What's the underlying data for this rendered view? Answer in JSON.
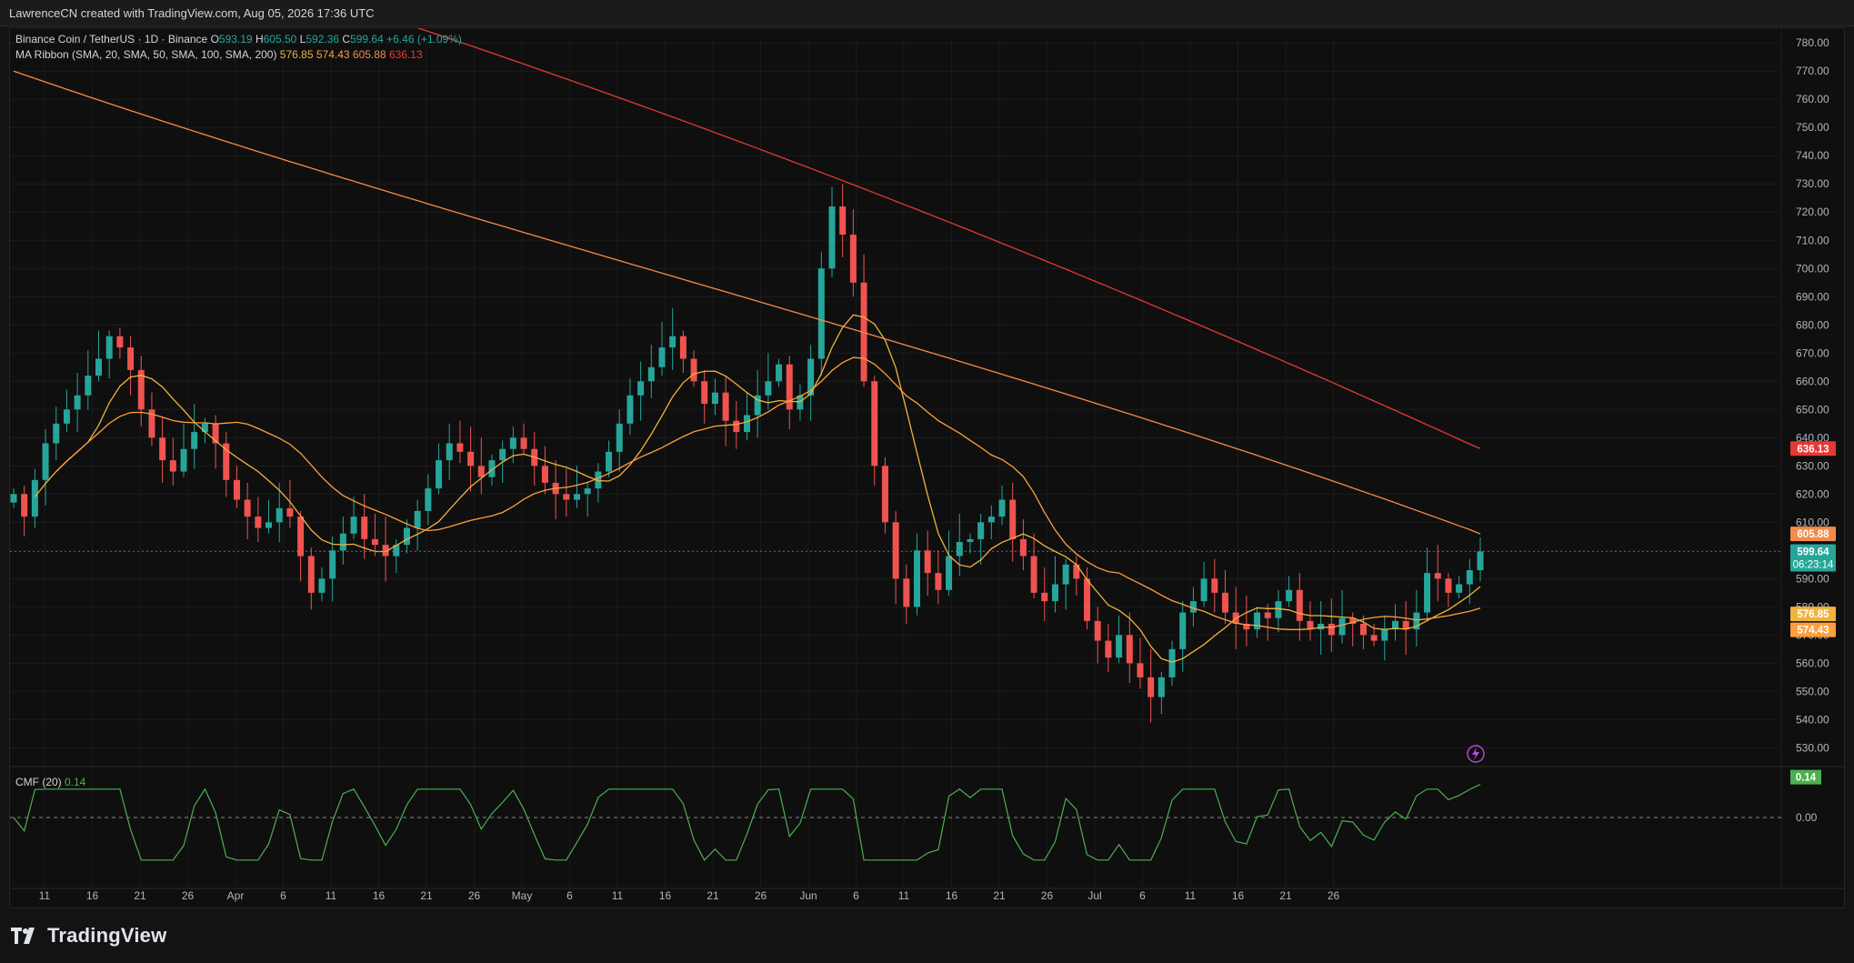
{
  "attribution": "LawrenceCN created with TradingView.com, Aug 05, 2026 17:36 UTC",
  "legend": {
    "symbol": "Binance Coin / TetherUS · 1D · Binance",
    "o_label": "O",
    "o": "593.19",
    "h_label": "H",
    "h": "605.50",
    "l_label": "L",
    "l": "592.36",
    "c_label": "C",
    "c": "599.64",
    "change": "+6.46 (+1.09%)",
    "ma_title": "MA Ribbon (SMA, 20, SMA, 50, SMA, 100, SMA, 200)",
    "ma_values": [
      "576.85",
      "574.43",
      "605.88",
      "636.13"
    ],
    "cmf_title": "CMF (20)",
    "cmf_value": "0.14"
  },
  "brand": "TradingView",
  "colors": {
    "up": "#26a69a",
    "down": "#ef5350",
    "sma20": "#f0b43c",
    "sma50": "#ff9f3c",
    "sma100": "#f58a4a",
    "sma200": "#e53935",
    "cmf": "#4caf50"
  },
  "chart_data": [
    {
      "type": "candlestick",
      "title": "Binance Coin / TetherUS · 1D · Binance",
      "y_axis_ticks": [
        "780.00",
        "770.00",
        "760.00",
        "750.00",
        "740.00",
        "730.00",
        "720.00",
        "710.00",
        "700.00",
        "690.00",
        "680.00",
        "670.00",
        "660.00",
        "650.00",
        "640.00",
        "630.00",
        "620.00",
        "610.00",
        "600.00",
        "590.00",
        "580.00",
        "570.00",
        "560.00",
        "550.00",
        "540.00",
        "530.00"
      ],
      "ylim": [
        524,
        782
      ],
      "x_axis_ticks": [
        "11",
        "16",
        "21",
        "26",
        "Apr",
        "6",
        "11",
        "16",
        "21",
        "26",
        "May",
        "6",
        "11",
        "16",
        "21",
        "26",
        "Jun",
        "6",
        "11",
        "16",
        "21",
        "26",
        "Jul",
        "6",
        "11",
        "16",
        "21",
        "26"
      ],
      "price_badges": [
        {
          "label": "636.13",
          "color": "#e53935"
        },
        {
          "label": "605.88",
          "color": "#f58a4a"
        },
        {
          "label": "599.64",
          "sub": "06:23:14",
          "color": "#26a69a"
        },
        {
          "label": "576.85",
          "color": "#f0b43c"
        },
        {
          "label": "574.43",
          "color": "#ff9f3c"
        }
      ],
      "close_series_approx": [
        620,
        612,
        625,
        638,
        645,
        650,
        655,
        662,
        668,
        676,
        672,
        664,
        650,
        640,
        632,
        628,
        636,
        642,
        645,
        638,
        625,
        618,
        612,
        608,
        610,
        615,
        612,
        598,
        585,
        590,
        600,
        606,
        612,
        604,
        602,
        598,
        602,
        608,
        614,
        622,
        632,
        638,
        635,
        630,
        626,
        632,
        636,
        640,
        636,
        630,
        624,
        620,
        618,
        620,
        622,
        628,
        635,
        645,
        655,
        660,
        665,
        672,
        676,
        668,
        660,
        652,
        656,
        646,
        642,
        648,
        655,
        660,
        666,
        650,
        655,
        668,
        700,
        722,
        712,
        695,
        660,
        630,
        610,
        590,
        580,
        600,
        592,
        586,
        598,
        603,
        604,
        610,
        612,
        618,
        604,
        598,
        585,
        582,
        588,
        595,
        590,
        575,
        568,
        562,
        570,
        560,
        555,
        548,
        555,
        565,
        578,
        582,
        590,
        585,
        578,
        574,
        572,
        578,
        576,
        582,
        586,
        575,
        572,
        574,
        570,
        576,
        574,
        570,
        568,
        572,
        575,
        572,
        578,
        592,
        590,
        585,
        588,
        593,
        599.64
      ],
      "series": [
        {
          "name": "SMA 20",
          "last": "576.85"
        },
        {
          "name": "SMA 50",
          "last": "574.43"
        },
        {
          "name": "SMA 100",
          "last": "605.88"
        },
        {
          "name": "SMA 200",
          "last": "636.13"
        }
      ]
    },
    {
      "type": "line",
      "title": "CMF (20)",
      "y_axis_ticks": [
        "0.14",
        "0.00"
      ],
      "zero_label": "0.00",
      "last": "0.14"
    }
  ]
}
